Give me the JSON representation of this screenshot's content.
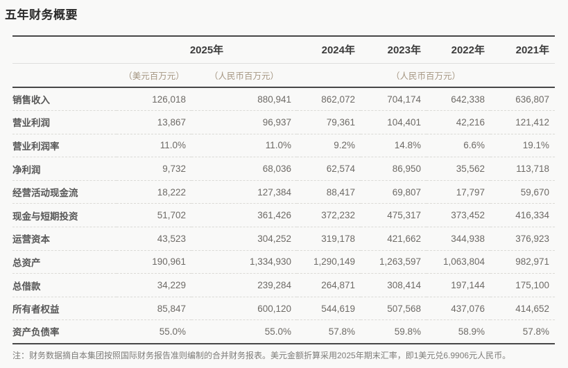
{
  "title": "五年财务概要",
  "table": {
    "years": [
      "2025年",
      "2024年",
      "2023年",
      "2022年",
      "2021年"
    ],
    "unit_headers": [
      "（美元百万元）",
      "（人民币百万元）",
      "（人民币百万元）"
    ],
    "rows": [
      {
        "label": "销售收入",
        "values": [
          "126,018",
          "880,941",
          "862,072",
          "704,174",
          "642,338",
          "636,807"
        ]
      },
      {
        "label": "营业利润",
        "values": [
          "13,867",
          "96,937",
          "79,361",
          "104,401",
          "42,216",
          "121,412"
        ]
      },
      {
        "label": "营业利润率",
        "values": [
          "11.0%",
          "11.0%",
          "9.2%",
          "14.8%",
          "6.6%",
          "19.1%"
        ]
      },
      {
        "label": "净利润",
        "values": [
          "9,732",
          "68,036",
          "62,574",
          "86,950",
          "35,562",
          "113,718"
        ]
      },
      {
        "label": "经营活动现金流",
        "values": [
          "18,222",
          "127,384",
          "88,417",
          "69,807",
          "17,797",
          "59,670"
        ]
      },
      {
        "label": "现金与短期投资",
        "values": [
          "51,702",
          "361,426",
          "372,232",
          "475,317",
          "373,452",
          "416,334"
        ]
      },
      {
        "label": "运营资本",
        "values": [
          "43,523",
          "304,252",
          "319,178",
          "421,662",
          "344,938",
          "376,923"
        ]
      },
      {
        "label": "总资产",
        "values": [
          "190,961",
          "1,334,930",
          "1,290,149",
          "1,263,597",
          "1,063,804",
          "982,971"
        ]
      },
      {
        "label": "总借款",
        "values": [
          "34,229",
          "239,284",
          "264,871",
          "308,414",
          "197,144",
          "175,100"
        ]
      },
      {
        "label": "所有者权益",
        "values": [
          "85,847",
          "600,120",
          "544,619",
          "507,568",
          "437,076",
          "414,652"
        ]
      },
      {
        "label": "资产负债率",
        "values": [
          "55.0%",
          "55.0%",
          "57.8%",
          "59.8%",
          "58.9%",
          "57.8%"
        ]
      }
    ]
  },
  "note": "注：财务数据摘自本集团按照国际财务报告准则编制的合并财务报表。美元金额折算采用2025年期末汇率，即1美元兑6.9906元人民币。",
  "colors": {
    "background": "#f9f9f8",
    "heavy_border": "#474747",
    "unit_text": "#a59682",
    "value_text": "#6d6a66"
  }
}
